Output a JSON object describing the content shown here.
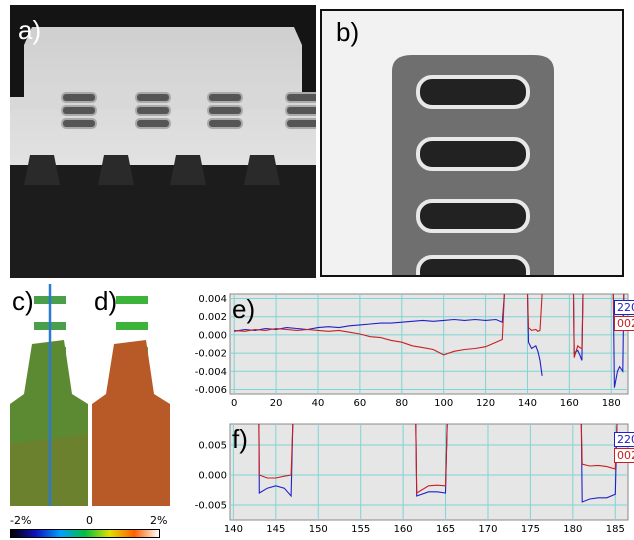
{
  "panels": {
    "a": {
      "label": "a)"
    },
    "b": {
      "label": "b)"
    },
    "c": {
      "label": "c)"
    },
    "d": {
      "label": "d)"
    },
    "e": {
      "label": "e)"
    },
    "f": {
      "label": "f)"
    }
  },
  "colorbar": {
    "min_label": "-2%",
    "mid_label": "0",
    "max_label": "2%",
    "colors": [
      "#000000",
      "#1010c0",
      "#00a0ff",
      "#00c040",
      "#e0e000",
      "#ff6000",
      "#ffffff"
    ]
  },
  "series_colors": {
    "s220": "#2020c8",
    "s002": "#c82020"
  },
  "chart_data": [
    {
      "type": "line",
      "panel": "e",
      "x_ticks": [
        0,
        20,
        40,
        60,
        80,
        100,
        120,
        140,
        160,
        180
      ],
      "x_tick_labels": [
        "0",
        "20",
        "40",
        "60",
        "80",
        "100",
        "120",
        "140",
        "160",
        "180"
      ],
      "xlim": [
        -2,
        188
      ],
      "y_ticks": [
        0.004,
        0.002,
        0.0,
        -0.002,
        -0.004,
        -0.006
      ],
      "y_tick_labels": [
        "0.004",
        "0.002",
        "0.000",
        "-0.002",
        "-0.004",
        "-0.006"
      ],
      "ylim": [
        -0.0065,
        0.0045
      ],
      "grid": true,
      "legend": [
        "220",
        "002"
      ],
      "series": [
        {
          "name": "220",
          "points": [
            [
              0,
              0.0004
            ],
            [
              5,
              0.0006
            ],
            [
              10,
              0.0005
            ],
            [
              15,
              0.0007
            ],
            [
              20,
              0.0006
            ],
            [
              25,
              0.0008
            ],
            [
              30,
              0.0007
            ],
            [
              35,
              0.0006
            ],
            [
              40,
              0.0008
            ],
            [
              45,
              0.0009
            ],
            [
              50,
              0.0008
            ],
            [
              55,
              0.001
            ],
            [
              60,
              0.0011
            ],
            [
              65,
              0.0012
            ],
            [
              70,
              0.0013
            ],
            [
              75,
              0.0013
            ],
            [
              80,
              0.0014
            ],
            [
              85,
              0.0015
            ],
            [
              90,
              0.0016
            ],
            [
              95,
              0.0015
            ],
            [
              100,
              0.0016
            ],
            [
              105,
              0.0017
            ],
            [
              110,
              0.0016
            ],
            [
              115,
              0.0017
            ],
            [
              120,
              0.0016
            ],
            [
              125,
              0.0017
            ],
            [
              128,
              0.0014
            ],
            [
              129,
              0.0045
            ],
            [
              null,
              null
            ],
            [
              140,
              0.0045
            ],
            [
              140.5,
              -0.0008
            ],
            [
              142,
              -0.0015
            ],
            [
              144,
              -0.0012
            ],
            [
              145,
              -0.0018
            ],
            [
              146,
              -0.0028
            ],
            [
              147,
              -0.0045
            ],
            [
              null,
              null
            ],
            [
              162,
              0.0045
            ],
            [
              162.3,
              -0.002
            ],
            [
              164,
              -0.0017
            ],
            [
              165,
              -0.0022
            ],
            [
              166,
              -0.0028
            ],
            [
              166.5,
              0.0045
            ],
            [
              null,
              null
            ],
            [
              181,
              0.0045
            ],
            [
              181.5,
              -0.0058
            ],
            [
              183,
              -0.004
            ],
            [
              184,
              -0.0035
            ],
            [
              185.5,
              -0.004
            ],
            [
              186,
              0.0045
            ]
          ]
        },
        {
          "name": "002",
          "points": [
            [
              0,
              0.0005
            ],
            [
              5,
              0.0004
            ],
            [
              10,
              0.0006
            ],
            [
              15,
              0.0005
            ],
            [
              20,
              0.0007
            ],
            [
              25,
              0.0006
            ],
            [
              30,
              0.0005
            ],
            [
              35,
              0.0006
            ],
            [
              40,
              0.0005
            ],
            [
              45,
              0.0004
            ],
            [
              50,
              0.0005
            ],
            [
              55,
              0.0003
            ],
            [
              60,
              0.0001
            ],
            [
              65,
              -0.0002
            ],
            [
              70,
              -0.0003
            ],
            [
              75,
              -0.0006
            ],
            [
              80,
              -0.0008
            ],
            [
              85,
              -0.0012
            ],
            [
              90,
              -0.0014
            ],
            [
              95,
              -0.0016
            ],
            [
              100,
              -0.0022
            ],
            [
              105,
              -0.0018
            ],
            [
              110,
              -0.0016
            ],
            [
              115,
              -0.0015
            ],
            [
              120,
              -0.0013
            ],
            [
              125,
              -0.0008
            ],
            [
              128,
              -0.0005
            ],
            [
              129,
              0.0045
            ],
            [
              null,
              null
            ],
            [
              140,
              0.0045
            ],
            [
              140.5,
              0.0008
            ],
            [
              142,
              0.0005
            ],
            [
              144,
              0.0006
            ],
            [
              145,
              0.0004
            ],
            [
              146,
              0.0005
            ],
            [
              147,
              0.0045
            ],
            [
              null,
              null
            ],
            [
              162,
              0.0045
            ],
            [
              162.3,
              -0.0025
            ],
            [
              164,
              -0.0012
            ],
            [
              165,
              -0.0014
            ],
            [
              166,
              -0.0015
            ],
            [
              166.5,
              0.0045
            ],
            [
              null,
              null
            ],
            [
              181,
              0.0045
            ],
            [
              181.5,
              0.0012
            ],
            [
              183,
              0.0008
            ],
            [
              184,
              0.0006
            ],
            [
              185.5,
              0.001
            ],
            [
              186,
              0.0045
            ]
          ]
        }
      ]
    },
    {
      "type": "line",
      "panel": "f",
      "x_ticks": [
        140,
        145,
        150,
        155,
        160,
        165,
        170,
        175,
        180,
        185
      ],
      "x_tick_labels": [
        "140",
        "145",
        "150",
        "155",
        "160",
        "165",
        "170",
        "175",
        "180",
        "185"
      ],
      "xlim": [
        139.6,
        186.5
      ],
      "y_ticks": [
        0.005,
        0.0,
        -0.005
      ],
      "y_tick_labels": [
        "0.005",
        "0.000",
        "-0.005"
      ],
      "ylim": [
        -0.0075,
        0.0085
      ],
      "grid": true,
      "legend": [
        "220",
        "002"
      ],
      "series": [
        {
          "name": "220",
          "points": [
            [
              143,
              0.0085
            ],
            [
              143.05,
              -0.003
            ],
            [
              144,
              -0.0022
            ],
            [
              145,
              -0.0018
            ],
            [
              146,
              -0.0022
            ],
            [
              146.8,
              -0.0035
            ],
            [
              147,
              0.0085
            ],
            [
              null,
              null
            ],
            [
              161.5,
              0.0085
            ],
            [
              161.6,
              -0.0035
            ],
            [
              163,
              -0.0028
            ],
            [
              164,
              -0.0028
            ],
            [
              165,
              -0.003
            ],
            [
              165.2,
              0.0085
            ],
            [
              null,
              null
            ],
            [
              181,
              0.0085
            ],
            [
              181.1,
              -0.0045
            ],
            [
              182,
              -0.004
            ],
            [
              183,
              -0.0038
            ],
            [
              184,
              -0.0038
            ],
            [
              185,
              -0.0032
            ],
            [
              185.2,
              0.0085
            ]
          ]
        },
        {
          "name": "002",
          "points": [
            [
              143,
              0.0085
            ],
            [
              143.05,
              0.0
            ],
            [
              144,
              -0.0005
            ],
            [
              145,
              -0.0005
            ],
            [
              146,
              -0.0002
            ],
            [
              146.8,
              0.0
            ],
            [
              147,
              0.0085
            ],
            [
              null,
              null
            ],
            [
              161.5,
              0.0085
            ],
            [
              161.6,
              -0.003
            ],
            [
              163,
              -0.0018
            ],
            [
              164,
              -0.0017
            ],
            [
              165,
              -0.0018
            ],
            [
              165.2,
              0.0085
            ],
            [
              null,
              null
            ],
            [
              181,
              0.0085
            ],
            [
              181.1,
              0.0018
            ],
            [
              182,
              0.0015
            ],
            [
              183,
              0.0016
            ],
            [
              184,
              0.0014
            ],
            [
              185,
              0.001
            ],
            [
              185.2,
              0.0085
            ]
          ]
        }
      ]
    }
  ]
}
